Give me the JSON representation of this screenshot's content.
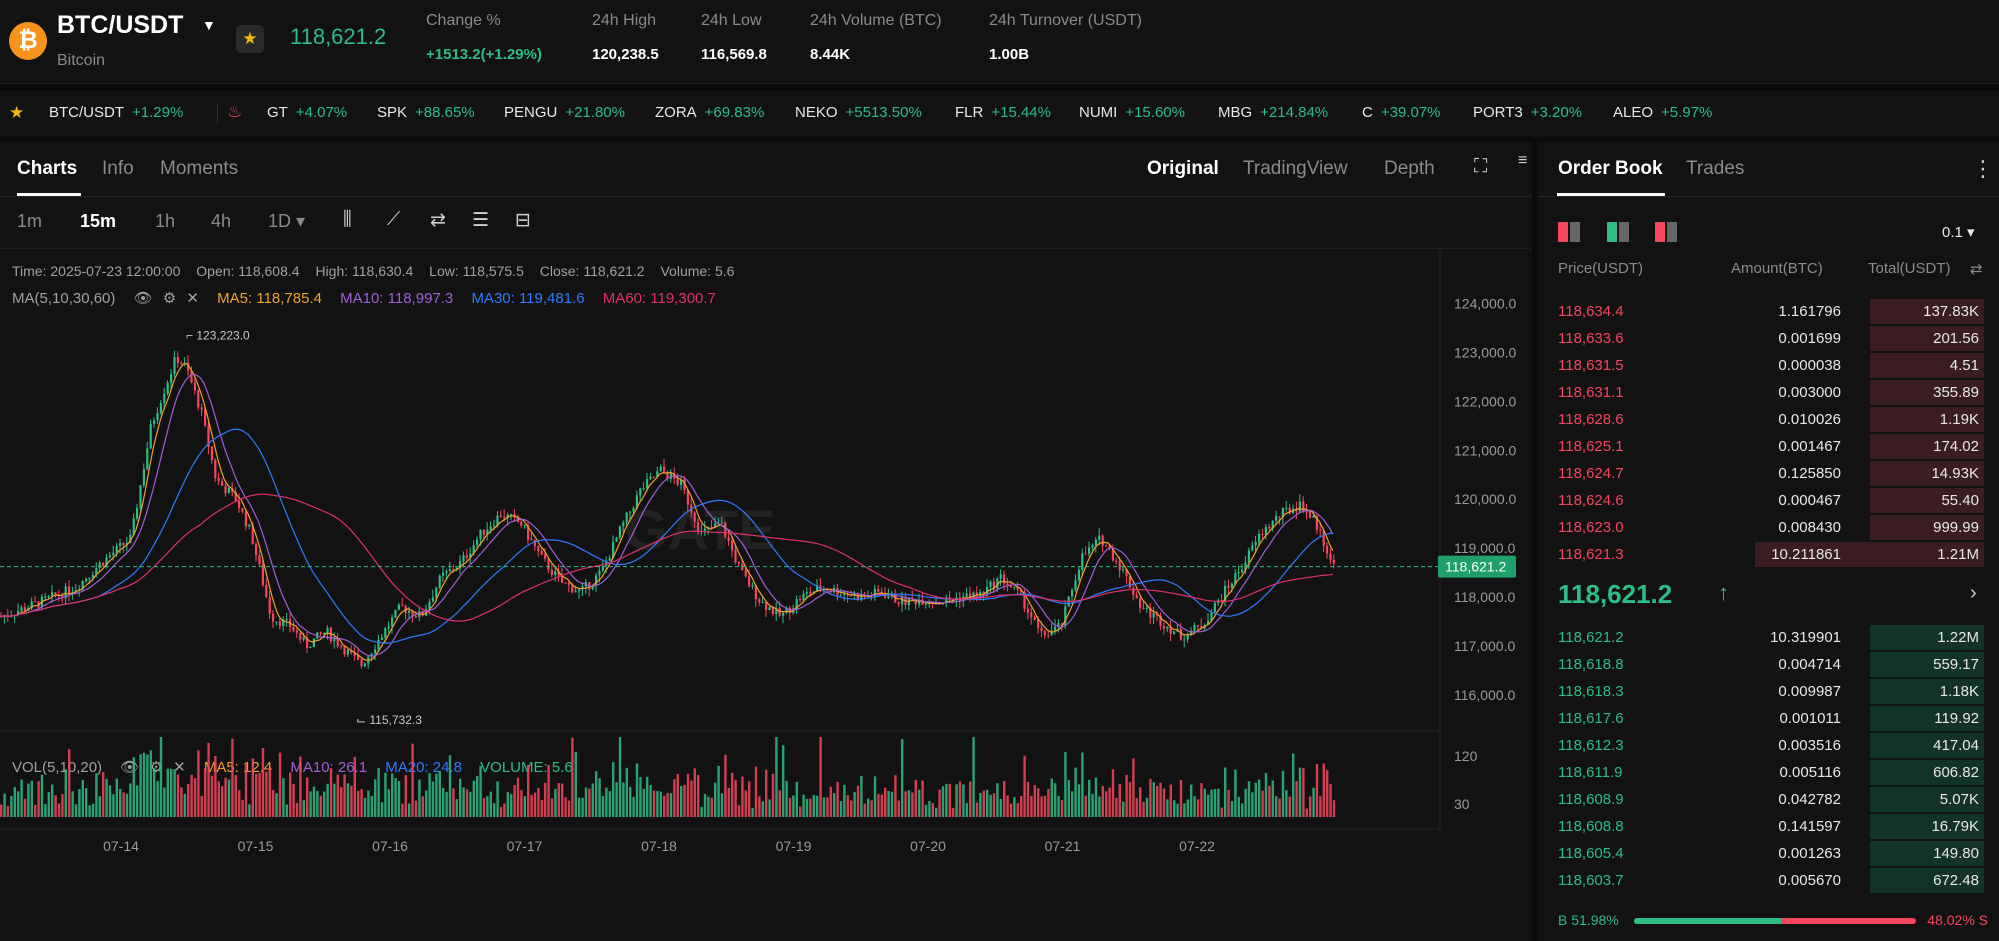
{
  "header": {
    "pair": "BTC/USDT",
    "sub": "Bitcoin",
    "last_price": "118,621.2",
    "stats": [
      {
        "label": "Change %",
        "value": "+1513.2(+1.29%)",
        "positive": true
      },
      {
        "label": "24h High",
        "value": "120,238.5"
      },
      {
        "label": "24h Low",
        "value": "116,569.8"
      },
      {
        "label": "24h Volume (BTC)",
        "value": "8.44K"
      },
      {
        "label": "24h Turnover (USDT)",
        "value": "1.00B"
      }
    ]
  },
  "ticker": [
    {
      "sym": "BTC/USDT",
      "chg": "+1.29%"
    },
    {
      "sym": "GT",
      "chg": "+4.07%"
    },
    {
      "sym": "SPK",
      "chg": "+88.65%"
    },
    {
      "sym": "PENGU",
      "chg": "+21.80%"
    },
    {
      "sym": "ZORA",
      "chg": "+69.83%"
    },
    {
      "sym": "NEKO",
      "chg": "+5513.50%"
    },
    {
      "sym": "FLR",
      "chg": "+15.44%"
    },
    {
      "sym": "NUMI",
      "chg": "+15.60%"
    },
    {
      "sym": "MBG",
      "chg": "+214.84%"
    },
    {
      "sym": "C",
      "chg": "+39.07%"
    },
    {
      "sym": "PORT3",
      "chg": "+3.20%"
    },
    {
      "sym": "ALEO",
      "chg": "+5.97%"
    }
  ],
  "chart_tabs": [
    "Charts",
    "Info",
    "Moments"
  ],
  "view_tabs": [
    "Original",
    "TradingView",
    "Depth"
  ],
  "intervals": [
    "1m",
    "15m",
    "1h",
    "4h",
    "1D ▾"
  ],
  "info_line": {
    "time": "Time: 2025-07-23 12:00:00",
    "open": "Open: 118,608.4",
    "high": "High: 118,630.4",
    "low": "Low: 118,575.5",
    "close": "Close: 118,621.2",
    "volume": "Volume: 5.6"
  },
  "ma_line": {
    "label": "MA(5,10,30,60)",
    "ma5": "MA5: 118,785.4",
    "ma10": "MA10: 118,997.3",
    "ma30": "MA30: 119,481.6",
    "ma60": "MA60: 119,300.7"
  },
  "vol_line": {
    "label": "VOL(5,10,20)",
    "ma5": "MA5: 12.4",
    "ma10": "MA10: 26.1",
    "ma20": "MA20: 24.8",
    "volume": "VOLUME: 5.6"
  },
  "chart_data": {
    "type": "candlestick",
    "interval": "15m",
    "x_tick_labels": [
      "07-14",
      "07-15",
      "07-16",
      "07-17",
      "07-18",
      "07-19",
      "07-20",
      "07-21",
      "07-22"
    ],
    "y_tick_labels": [
      "124,000.0",
      "123,000.0",
      "122,000.0",
      "121,000.0",
      "120,000.0",
      "119,000.0",
      "118,000.0",
      "117,000.0",
      "116,000.0"
    ],
    "ylim": [
      115300,
      124300
    ],
    "close_path_keypoints": [
      [
        0,
        117600
      ],
      [
        40,
        117900
      ],
      [
        75,
        118200
      ],
      [
        100,
        118700
      ],
      [
        130,
        119200
      ],
      [
        150,
        121500
      ],
      [
        175,
        122900
      ],
      [
        185,
        122700
      ],
      [
        200,
        121800
      ],
      [
        215,
        120400
      ],
      [
        235,
        120000
      ],
      [
        250,
        119300
      ],
      [
        270,
        117600
      ],
      [
        290,
        117400
      ],
      [
        305,
        117000
      ],
      [
        325,
        117300
      ],
      [
        345,
        116900
      ],
      [
        360,
        116600
      ],
      [
        380,
        117200
      ],
      [
        400,
        117800
      ],
      [
        420,
        117600
      ],
      [
        440,
        118400
      ],
      [
        460,
        118700
      ],
      [
        480,
        119300
      ],
      [
        500,
        119700
      ],
      [
        520,
        119500
      ],
      [
        540,
        118800
      ],
      [
        560,
        118300
      ],
      [
        580,
        118100
      ],
      [
        600,
        118500
      ],
      [
        620,
        119400
      ],
      [
        640,
        120200
      ],
      [
        660,
        120600
      ],
      [
        680,
        120300
      ],
      [
        700,
        119300
      ],
      [
        720,
        119500
      ],
      [
        740,
        118500
      ],
      [
        760,
        117900
      ],
      [
        780,
        117600
      ],
      [
        800,
        118000
      ],
      [
        820,
        118200
      ],
      [
        840,
        118100
      ],
      [
        860,
        118000
      ],
      [
        880,
        118100
      ],
      [
        900,
        117900
      ],
      [
        920,
        117950
      ],
      [
        940,
        117900
      ],
      [
        960,
        118000
      ],
      [
        980,
        118050
      ],
      [
        1000,
        118400
      ],
      [
        1020,
        118000
      ],
      [
        1040,
        117200
      ],
      [
        1060,
        117400
      ],
      [
        1080,
        118800
      ],
      [
        1100,
        119200
      ],
      [
        1120,
        118600
      ],
      [
        1140,
        117800
      ],
      [
        1160,
        117500
      ],
      [
        1180,
        117200
      ],
      [
        1200,
        117400
      ],
      [
        1220,
        118000
      ],
      [
        1240,
        118600
      ],
      [
        1260,
        119300
      ],
      [
        1280,
        119700
      ],
      [
        1300,
        119900
      ],
      [
        1315,
        119500
      ],
      [
        1333,
        118621
      ]
    ],
    "high_label": "123,223.0",
    "low_label": "115,732.3",
    "last_price_label": "118,621.2",
    "volume_ticks": [
      "120",
      "30"
    ],
    "watermark": "GATE"
  },
  "orderbook": {
    "tabs": [
      "Order Book",
      "Trades"
    ],
    "precision": "0.1",
    "headers": {
      "price": "Price(USDT)",
      "amount": "Amount(BTC)",
      "total": "Total(USDT)"
    },
    "asks": [
      {
        "p": "118,634.4",
        "a": "1.161796",
        "t": "137.83K",
        "d": 0.26
      },
      {
        "p": "118,633.6",
        "a": "0.001699",
        "t": "201.56",
        "d": 0.26
      },
      {
        "p": "118,631.5",
        "a": "0.000038",
        "t": "4.51",
        "d": 0.26
      },
      {
        "p": "118,631.1",
        "a": "0.003000",
        "t": "355.89",
        "d": 0.26
      },
      {
        "p": "118,628.6",
        "a": "0.010026",
        "t": "1.19K",
        "d": 0.26
      },
      {
        "p": "118,625.1",
        "a": "0.001467",
        "t": "174.02",
        "d": 0.26
      },
      {
        "p": "118,624.7",
        "a": "0.125850",
        "t": "14.93K",
        "d": 0.26
      },
      {
        "p": "118,624.6",
        "a": "0.000467",
        "t": "55.40",
        "d": 0.26
      },
      {
        "p": "118,623.0",
        "a": "0.008430",
        "t": "999.99",
        "d": 0.26
      },
      {
        "p": "118,621.3",
        "a": "10.211861",
        "t": "1.21M",
        "d": 0.52
      }
    ],
    "mid_price": "118,621.2",
    "mid_arrow": "↑",
    "bids": [
      {
        "p": "118,621.2",
        "a": "10.319901",
        "t": "1.22M",
        "d": 0.26
      },
      {
        "p": "118,618.8",
        "a": "0.004714",
        "t": "559.17",
        "d": 0.26
      },
      {
        "p": "118,618.3",
        "a": "0.009987",
        "t": "1.18K",
        "d": 0.26
      },
      {
        "p": "118,617.6",
        "a": "0.001011",
        "t": "119.92",
        "d": 0.26
      },
      {
        "p": "118,612.3",
        "a": "0.003516",
        "t": "417.04",
        "d": 0.26
      },
      {
        "p": "118,611.9",
        "a": "0.005116",
        "t": "606.82",
        "d": 0.26
      },
      {
        "p": "118,608.9",
        "a": "0.042782",
        "t": "5.07K",
        "d": 0.26
      },
      {
        "p": "118,608.8",
        "a": "0.141597",
        "t": "16.79K",
        "d": 0.26
      },
      {
        "p": "118,605.4",
        "a": "0.001263",
        "t": "149.80",
        "d": 0.26
      },
      {
        "p": "118,603.7",
        "a": "0.005670",
        "t": "672.48",
        "d": 0.26
      }
    ],
    "buy_ratio": "B 51.98%",
    "sell_ratio": "48.02% S",
    "buy_fraction": 0.5198
  },
  "colors": {
    "up": "#2ebd85",
    "down": "#f6465d",
    "ma5": "#f0a030",
    "ma10": "#a05fd8",
    "ma30": "#2f7bff",
    "ma60": "#e0306e"
  }
}
